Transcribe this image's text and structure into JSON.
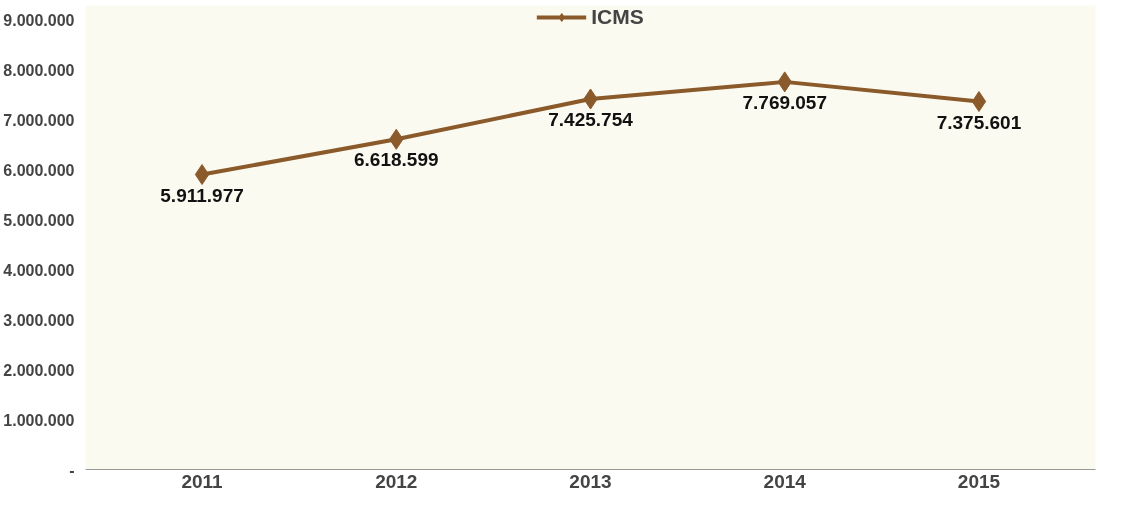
{
  "chart_data": {
    "type": "line",
    "categories": [
      "2011",
      "2012",
      "2013",
      "2014",
      "2015"
    ],
    "series": [
      {
        "name": "ICMS",
        "color": "#8b5a2b",
        "values": [
          5911977,
          6618599,
          7425754,
          7769057,
          7375601
        ]
      }
    ],
    "value_labels": [
      "5.911.977",
      "6.618.599",
      "7.425.754",
      "7.769.057",
      "7.375.601"
    ],
    "ylim": [
      0,
      9300000
    ],
    "yticks": [
      {
        "value": 0,
        "label": "-"
      },
      {
        "value": 1000000,
        "label": "1.000.000"
      },
      {
        "value": 2000000,
        "label": "2.000.000"
      },
      {
        "value": 3000000,
        "label": "3.000.000"
      },
      {
        "value": 4000000,
        "label": "4.000.000"
      },
      {
        "value": 5000000,
        "label": "5.000.000"
      },
      {
        "value": 6000000,
        "label": "6.000.000"
      },
      {
        "value": 7000000,
        "label": "7.000.000"
      },
      {
        "value": 8000000,
        "label": "8.000.000"
      },
      {
        "value": 9000000,
        "label": "9.000.000"
      }
    ],
    "marker": "diamond",
    "legend": "top",
    "grid": false
  }
}
